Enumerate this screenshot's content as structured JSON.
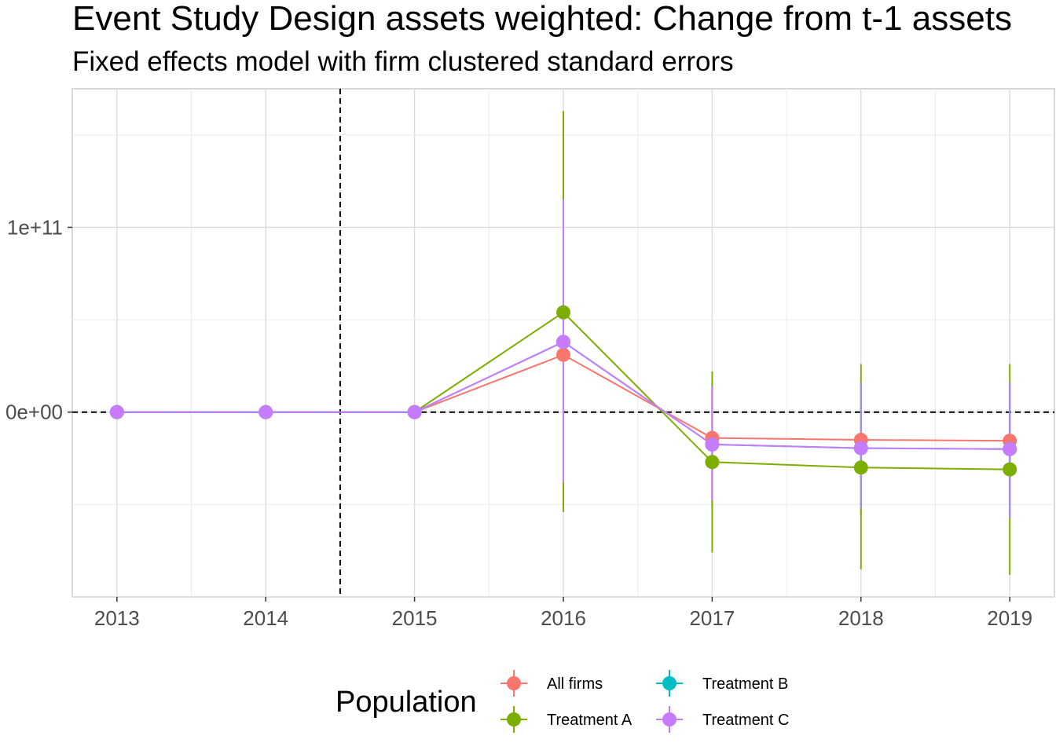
{
  "chart_data": {
    "type": "line",
    "title": "Event Study Design assets weighted: Change from t-1 assets",
    "subtitle": "Fixed effects model with firm clustered standard errors",
    "xlabel": "",
    "ylabel": "",
    "x": [
      2013,
      2014,
      2015,
      2016,
      2017,
      2018,
      2019
    ],
    "x_tick_labels": [
      "2013",
      "2014",
      "2015",
      "2016",
      "2017",
      "2018",
      "2019"
    ],
    "y_tick_labels": [
      {
        "value": 0,
        "label": "0e+00"
      },
      {
        "value": 100000000000,
        "label": "1e+11"
      }
    ],
    "ylim": [
      -100000000000,
      175000000000
    ],
    "xlim": [
      2012.7,
      2019.3
    ],
    "reference_lines": {
      "vertical_x": 2014.5,
      "horizontal_y": 0,
      "style": "dashed"
    },
    "grid": true,
    "legend": {
      "title": "Population",
      "position": "bottom"
    },
    "series": [
      {
        "name": "All firms",
        "color": "#F8766D",
        "values": [
          0,
          0,
          0,
          31000000000,
          -14000000000,
          -15000000000,
          -15500000000
        ],
        "ci_low": [
          0,
          0,
          0,
          -38000000000,
          -52000000000,
          -55000000000,
          -57000000000
        ],
        "ci_high": [
          0,
          0,
          0,
          115000000000,
          14000000000,
          16000000000,
          16000000000
        ]
      },
      {
        "name": "Treatment A",
        "color": "#7CAE00",
        "values": [
          0,
          0,
          0,
          54000000000,
          -27000000000,
          -30000000000,
          -31000000000
        ],
        "ci_low": [
          0,
          0,
          0,
          -54000000000,
          -76000000000,
          -85000000000,
          -88000000000
        ],
        "ci_high": [
          0,
          0,
          0,
          163000000000,
          22000000000,
          26000000000,
          26000000000
        ]
      },
      {
        "name": "Treatment B",
        "color": "#00BFC4",
        "values": [
          0,
          0,
          0,
          38000000000,
          -17500000000,
          -19500000000,
          -20000000000
        ],
        "ci_low": [
          0,
          0,
          0,
          -38000000000,
          -48000000000,
          -52000000000,
          -57000000000
        ],
        "ci_high": [
          0,
          0,
          0,
          115000000000,
          14000000000,
          16000000000,
          16000000000
        ]
      },
      {
        "name": "Treatment C",
        "color": "#C77CFF",
        "values": [
          0,
          0,
          0,
          38000000000,
          -17500000000,
          -19500000000,
          -20000000000
        ],
        "ci_low": [
          0,
          0,
          0,
          -38000000000,
          -48000000000,
          -52000000000,
          -57000000000
        ],
        "ci_high": [
          0,
          0,
          0,
          115000000000,
          14000000000,
          16000000000,
          16000000000
        ]
      }
    ]
  }
}
